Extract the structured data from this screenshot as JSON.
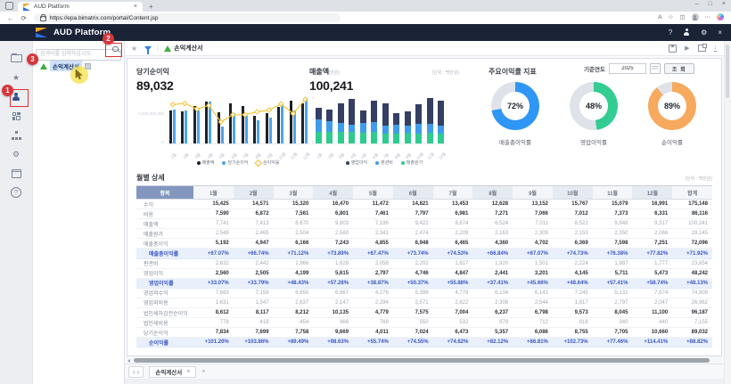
{
  "browser": {
    "tab_title": "AUD Platform",
    "url": "https://epa.bimatrix.com/portal/Content.jsp"
  },
  "icons": {
    "back": "←",
    "refresh": "⟳",
    "close": "×",
    "minimize": "–",
    "maximize": "□",
    "new_tab": "+",
    "more": "⋯",
    "star": "☆",
    "star_filled": "★",
    "split": "◫",
    "read_aloud": "A",
    "help": "?",
    "gear": "⚙",
    "play": "▶",
    "download": "↓",
    "divider": "|",
    "prev": "‹",
    "next": "›"
  },
  "header": {
    "brand": "AUD Platform"
  },
  "sidebar": {
    "items": [
      "folder",
      "star",
      "user",
      "components",
      "org-chart",
      "settings",
      "calendar",
      "help"
    ],
    "active_item": "user"
  },
  "tree": {
    "search_placeholder": "검색어를 입력하십시오.",
    "items": [
      {
        "label": "손익계산서",
        "selected": true
      }
    ]
  },
  "toolbar": {
    "breadcrumb": "손익계산서"
  },
  "filters": {
    "base_year_label": "기준연도",
    "base_year_value": "2025",
    "query_label": "조 회"
  },
  "annotations": {
    "step1": "1",
    "step2": "2",
    "step3": "3"
  },
  "chart_data": [
    {
      "type": "bar",
      "title": "당기순이익",
      "unit": "(단위 : 백만원)",
      "kpi_value": "89,032",
      "categories": [
        "1월",
        "2월",
        "3월",
        "4월",
        "5월",
        "6월",
        "7월",
        "8월",
        "9월",
        "10월",
        "11월",
        "12월"
      ],
      "series": [
        {
          "name": "매출액",
          "type": "bar",
          "color": "#1f2126",
          "values": [
            7741,
            7413,
            8670,
            9803,
            7196,
            9422,
            8674,
            6524,
            7011,
            8522,
            9948,
            9317
          ]
        },
        {
          "name": "당기순이익",
          "type": "bar",
          "color": "#4aa4ee",
          "values": [
            7834,
            7699,
            7758,
            9669,
            4011,
            7024,
            6473,
            5357,
            6086,
            8755,
            7705,
            10660
          ]
        },
        {
          "name": "순이익률",
          "type": "line",
          "color": "#f5c23a",
          "values": [
            101.2,
            103.86,
            89.49,
            98.63,
            55.74,
            74.55,
            74.62,
            82.12,
            86.81,
            102.73,
            77.46,
            114.41
          ]
        }
      ],
      "y_axis_labels": [
        "6,000,000,000",
        "0"
      ],
      "right_axis_labels": [
        "1",
        "1",
        "0"
      ],
      "ylim": [
        0,
        11200
      ],
      "right_ylim": [
        0,
        125
      ]
    },
    {
      "type": "bar",
      "title": "매출액",
      "unit": "(단위 : 백만원)",
      "kpi_value": "100,241",
      "stacked": true,
      "categories": [
        "1월",
        "2월",
        "3월",
        "4월",
        "5월",
        "6월",
        "7월",
        "8월",
        "9월",
        "10월",
        "11월",
        "12월"
      ],
      "series": [
        {
          "name": "영업이익",
          "color": "#343f63",
          "values": [
            2560,
            2505,
            4199,
            5615,
            2797,
            4746,
            4847,
            2441,
            3201,
            4145,
            5711,
            5473
          ]
        },
        {
          "name": "판관비",
          "color": "#3f9ceb",
          "values": [
            2632,
            2442,
            1966,
            1628,
            2058,
            2202,
            1617,
            1920,
            1501,
            2224,
            1887,
            1777
          ]
        },
        {
          "name": "매출원가",
          "color": "#2ecb8f",
          "values": [
            2549,
            2465,
            2504,
            2560,
            2341,
            2474,
            2209,
            2163,
            2309,
            2153,
            2350,
            2066
          ]
        }
      ],
      "ylim": [
        0,
        10500
      ]
    },
    {
      "type": "pie",
      "title": "주요이익률 지표",
      "items": [
        {
          "label": "매출총이익률",
          "value": 72,
          "display": "72%",
          "color": "#3096f5"
        },
        {
          "label": "영업이익률",
          "value": 48,
          "display": "48%",
          "color": "#33cc92"
        },
        {
          "label": "순이익률",
          "value": 89,
          "display": "89%",
          "color": "#f7a95e"
        }
      ],
      "track_color": "#dfe3e9"
    }
  ],
  "table": {
    "title": "월별 상세",
    "unit": "(단위 : 백만원)",
    "header": [
      "항목",
      "1월",
      "2월",
      "3월",
      "4월",
      "5월",
      "6월",
      "7월",
      "8월",
      "9월",
      "10월",
      "11월",
      "12월",
      "합계"
    ],
    "rows": [
      {
        "label": "수익",
        "style": "bold",
        "values": [
          "15,425",
          "14,571",
          "15,320",
          "16,470",
          "11,472",
          "14,821",
          "13,453",
          "12,628",
          "13,152",
          "15,767",
          "15,079",
          "16,991",
          "175,148"
        ]
      },
      {
        "label": "비용",
        "style": "bold",
        "values": [
          "7,590",
          "6,872",
          "7,561",
          "6,801",
          "7,461",
          "7,797",
          "6,981",
          "7,271",
          "7,066",
          "7,012",
          "7,373",
          "6,331",
          "86,116"
        ]
      },
      {
        "label": "매출액",
        "style": "plain",
        "values": [
          "7,741",
          "7,413",
          "8,670",
          "9,803",
          "7,196",
          "9,422",
          "8,674",
          "6,524",
          "7,011",
          "8,522",
          "9,948",
          "9,317",
          "100,241"
        ]
      },
      {
        "label": "매출원가",
        "style": "plain",
        "values": [
          "2,549",
          "2,465",
          "2,504",
          "2,560",
          "2,341",
          "2,474",
          "2,209",
          "2,163",
          "2,309",
          "2,153",
          "2,350",
          "2,066",
          "28,145"
        ]
      },
      {
        "label": "매출총이익",
        "style": "bold",
        "values": [
          "5,192",
          "4,947",
          "6,166",
          "7,243",
          "4,855",
          "6,948",
          "6,465",
          "4,360",
          "4,702",
          "6,369",
          "7,598",
          "7,251",
          "72,096"
        ]
      },
      {
        "label": "매출총이익률",
        "style": "ratio",
        "values": [
          "+67.07%",
          "+66.74%",
          "+71.12%",
          "+73.89%",
          "+67.47%",
          "+73.74%",
          "+74.53%",
          "+66.84%",
          "+67.07%",
          "+74.73%",
          "+76.38%",
          "+77.82%",
          "+71.92%"
        ]
      },
      {
        "label": "판관비",
        "style": "plain",
        "values": [
          "2,632",
          "2,442",
          "1,966",
          "1,628",
          "2,058",
          "2,202",
          "1,617",
          "1,920",
          "1,501",
          "2,224",
          "1,887",
          "1,777",
          "23,854"
        ]
      },
      {
        "label": "영업이익",
        "style": "bold",
        "values": [
          "2,560",
          "2,505",
          "4,199",
          "5,615",
          "2,797",
          "4,746",
          "4,847",
          "2,441",
          "3,201",
          "4,145",
          "5,711",
          "5,473",
          "48,242"
        ]
      },
      {
        "label": "영업이익률",
        "style": "ratio",
        "values": [
          "+33.07%",
          "+33.79%",
          "+48.43%",
          "+57.28%",
          "+38.87%",
          "+50.37%",
          "+55.88%",
          "+37.41%",
          "+45.66%",
          "+48.64%",
          "+57.41%",
          "+58.74%",
          "+48.13%"
        ]
      },
      {
        "label": "영업외수익",
        "style": "plain",
        "values": [
          "7,683",
          "7,159",
          "6,650",
          "6,667",
          "4,276",
          "5,399",
          "4,779",
          "6,104",
          "6,141",
          "7,245",
          "5,131",
          "7,674",
          "74,908"
        ]
      },
      {
        "label": "영업외비용",
        "style": "plain",
        "values": [
          "1,631",
          "1,547",
          "2,637",
          "2,147",
          "2,294",
          "2,571",
          "2,622",
          "2,308",
          "2,544",
          "1,817",
          "2,797",
          "2,047",
          "26,962"
        ]
      },
      {
        "label": "법인세차감전순이익",
        "style": "bold",
        "values": [
          "8,612",
          "8,117",
          "8,212",
          "10,135",
          "4,779",
          "7,575",
          "7,004",
          "6,237",
          "6,798",
          "9,573",
          "8,045",
          "11,100",
          "96,187"
        ]
      },
      {
        "label": "법인세비용",
        "style": "plain",
        "values": [
          "778",
          "418",
          "454",
          "466",
          "768",
          "550",
          "532",
          "879",
          "712",
          "818",
          "340",
          "440",
          "7,155"
        ]
      },
      {
        "label": "당기순이익",
        "style": "bold",
        "values": [
          "7,834",
          "7,699",
          "7,758",
          "9,669",
          "4,011",
          "7,024",
          "6,473",
          "5,357",
          "6,086",
          "8,755",
          "7,705",
          "10,660",
          "89,032"
        ]
      },
      {
        "label": "순이익률",
        "style": "ratio",
        "values": [
          "+101.20%",
          "+103.86%",
          "+89.49%",
          "+98.63%",
          "+55.74%",
          "+74.55%",
          "+74.62%",
          "+82.12%",
          "+86.81%",
          "+102.73%",
          "+77.46%",
          "+114.41%",
          "+88.82%"
        ]
      }
    ]
  },
  "bottom": {
    "tab_label": "손익계산서"
  }
}
